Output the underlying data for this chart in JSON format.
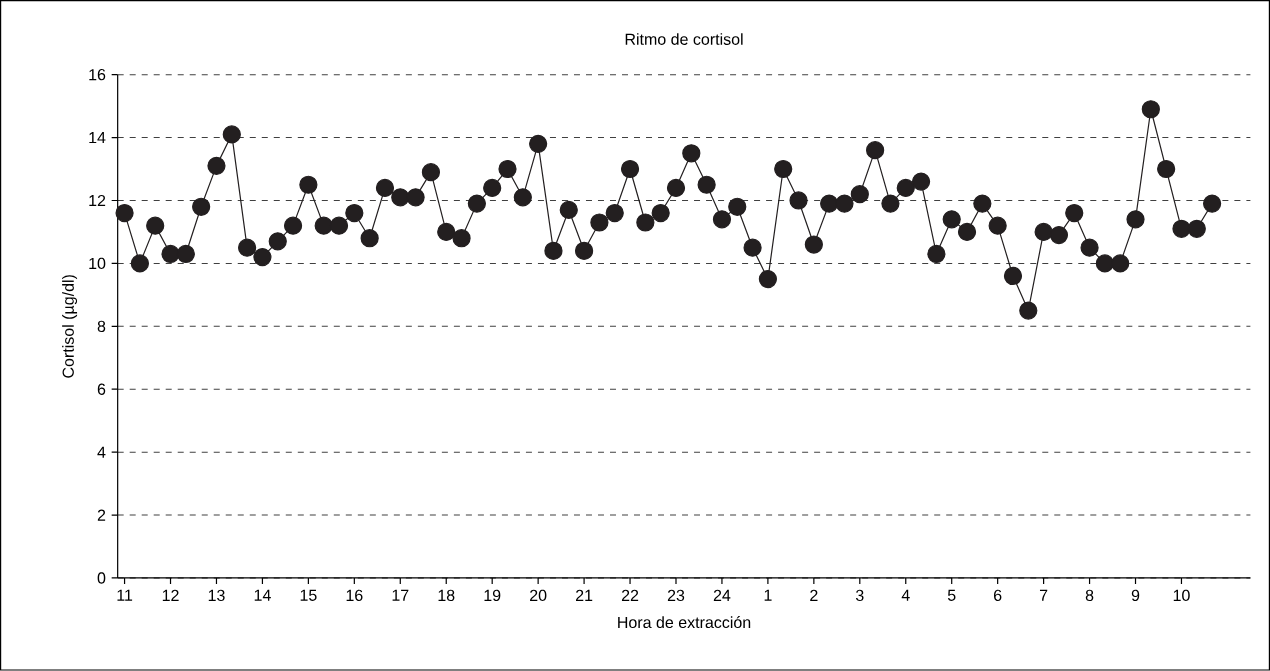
{
  "chart_data": {
    "type": "line",
    "title": "Ritmo de cortisol",
    "xlabel": "Hora de extracción",
    "ylabel": "Cortisol (µg/dl)",
    "categories": [
      "11",
      null,
      null,
      "12",
      null,
      null,
      "13",
      null,
      null,
      "14",
      null,
      null,
      "15",
      null,
      null,
      "16",
      null,
      null,
      "17",
      null,
      null,
      "18",
      null,
      null,
      "19",
      null,
      null,
      "20",
      null,
      null,
      "21",
      null,
      null,
      "22",
      null,
      null,
      "23",
      null,
      null,
      "24",
      null,
      null,
      "1",
      null,
      null,
      "2",
      null,
      null,
      "3",
      null,
      null,
      "4",
      null,
      null,
      "5",
      null,
      null,
      "6",
      null,
      null,
      "7",
      null,
      null,
      "8",
      null,
      null,
      "9",
      null,
      null,
      "10",
      null,
      null
    ],
    "series": [
      {
        "color": "#231f20",
        "values": [
          11.6,
          10.0,
          11.2,
          10.3,
          10.3,
          11.8,
          13.1,
          14.1,
          10.5,
          10.2,
          10.7,
          11.2,
          12.5,
          11.2,
          11.2,
          11.6,
          10.8,
          12.4,
          12.1,
          12.1,
          12.9,
          11.0,
          10.8,
          11.9,
          12.4,
          13.0,
          12.1,
          13.8,
          10.4,
          11.7,
          10.4,
          11.3,
          11.6,
          13.0,
          11.3,
          11.6,
          12.4,
          13.5,
          12.5,
          11.4,
          11.8,
          10.5,
          9.5,
          13.0,
          12.0,
          10.6,
          11.9,
          11.9,
          12.2,
          13.6,
          11.9,
          12.4,
          12.6,
          10.3,
          11.4,
          11.0,
          11.9,
          11.2,
          9.6,
          8.5,
          11.0,
          10.9,
          11.6,
          10.5,
          10.0,
          10.0,
          11.4,
          14.9,
          13.0,
          11.1,
          11.1,
          11.9
        ]
      }
    ],
    "ylim": [
      0,
      16
    ],
    "yticks": [
      0,
      2,
      4,
      6,
      8,
      10,
      12,
      14,
      16
    ],
    "grid": "y",
    "marker": "circle",
    "line_style": "solid"
  }
}
